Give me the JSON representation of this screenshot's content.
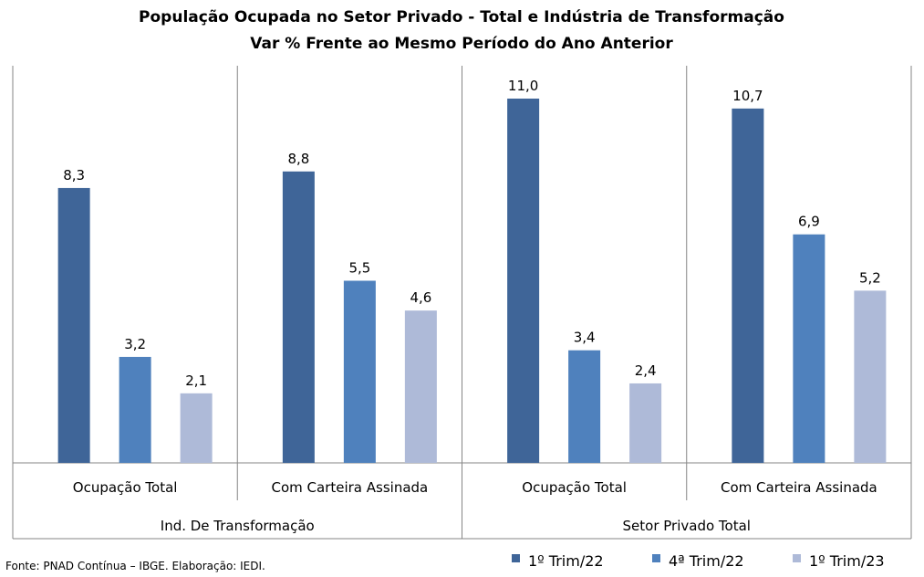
{
  "chart_data": {
    "type": "bar",
    "title": "População Ocupada no Setor Privado - Total e Indústria de Transformação",
    "subtitle": "Var % Frente ao Mesmo Período do Ano Anterior",
    "groups": [
      {
        "label": "Ind. De Transformação",
        "categories": [
          {
            "label": "Ocupação Total",
            "values": [
              8.3,
              3.2,
              2.1
            ],
            "value_labels": [
              "8,3",
              "3,2",
              "2,1"
            ]
          },
          {
            "label": "Com Carteira Assinada",
            "values": [
              8.8,
              5.5,
              4.6
            ],
            "value_labels": [
              "8,8",
              "5,5",
              "4,6"
            ]
          }
        ]
      },
      {
        "label": "Setor Privado Total",
        "categories": [
          {
            "label": "Ocupação Total",
            "values": [
              11.0,
              3.4,
              2.4
            ],
            "value_labels": [
              "11,0",
              "3,4",
              "2,4"
            ]
          },
          {
            "label": "Com Carteira Assinada",
            "values": [
              10.7,
              6.9,
              5.2
            ],
            "value_labels": [
              "10,7",
              "6,9",
              "5,2"
            ]
          }
        ]
      }
    ],
    "series": [
      {
        "name": "1º Trim/22",
        "color": "#3f6598"
      },
      {
        "name": "4ª Trim/22",
        "color": "#4f81bd"
      },
      {
        "name": "1º Trim/23",
        "color": "#aebad8"
      }
    ],
    "ylim": [
      0,
      12
    ],
    "legend_position": "bottom-right",
    "grid": false
  },
  "source_note": "Fonte: PNAD Contínua – IBGE. Elaboração: IEDI."
}
